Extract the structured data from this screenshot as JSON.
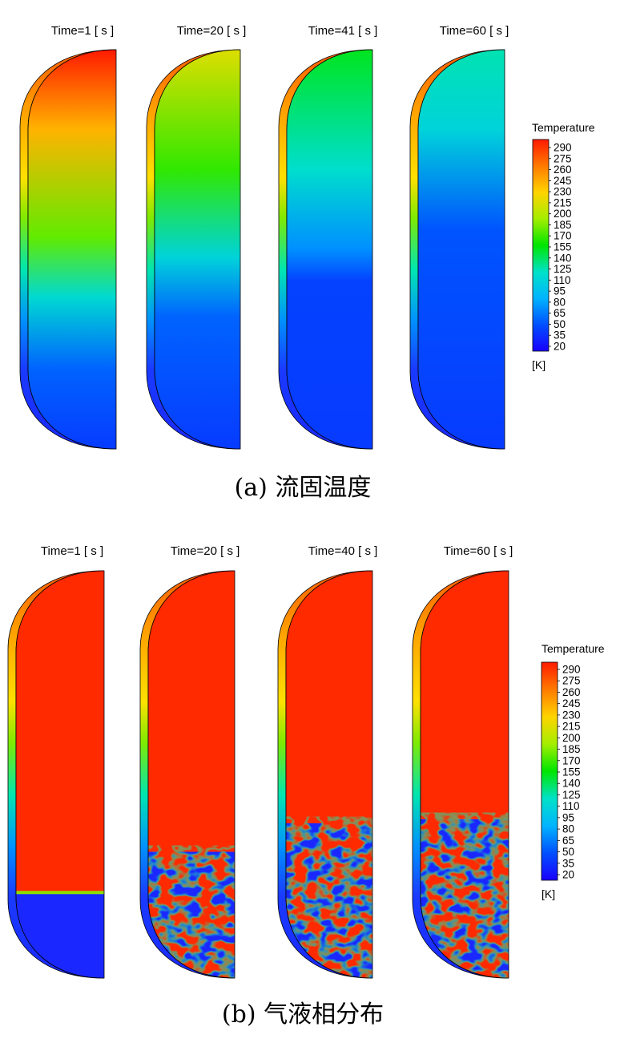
{
  "panel_a": {
    "caption": "(a) 流固温度",
    "times": [
      "Time=1 [ s ]",
      "Time=20 [ s ]",
      "Time=41 [ s ]",
      "Time=60 [ s ]"
    ],
    "legend": {
      "title": "Temperature",
      "unit": "[K]",
      "ticks": [
        "290",
        "275",
        "260",
        "245",
        "230",
        "215",
        "200",
        "185",
        "170",
        "155",
        "140",
        "125",
        "110",
        "95",
        "80",
        "65",
        "50",
        "35",
        "20"
      ]
    },
    "fields": [
      {
        "stops": [
          [
            0.0,
            290
          ],
          [
            0.2,
            235
          ],
          [
            0.47,
            175
          ],
          [
            0.62,
            115
          ],
          [
            0.8,
            60
          ],
          [
            1.0,
            45
          ]
        ]
      },
      {
        "stops": [
          [
            0.0,
            210
          ],
          [
            0.3,
            165
          ],
          [
            0.52,
            110
          ],
          [
            0.67,
            60
          ],
          [
            1.0,
            45
          ]
        ]
      },
      {
        "stops": [
          [
            0.0,
            150
          ],
          [
            0.3,
            118
          ],
          [
            0.5,
            75
          ],
          [
            0.58,
            48
          ],
          [
            1.0,
            45
          ]
        ]
      },
      {
        "stops": [
          [
            0.0,
            125
          ],
          [
            0.2,
            110
          ],
          [
            0.45,
            55
          ],
          [
            1.0,
            45
          ]
        ]
      }
    ]
  },
  "panel_b": {
    "caption": "(b) 气液相分布",
    "times": [
      "Time=1 [ s ]",
      "Time=20 [ s ]",
      "Time=40 [ s ]",
      "Time=60 [ s ]"
    ],
    "legend": {
      "title": "Temperature",
      "unit": "[K]",
      "ticks": [
        "290",
        "275",
        "260",
        "245",
        "230",
        "215",
        "200",
        "185",
        "170",
        "155",
        "140",
        "125",
        "110",
        "95",
        "80",
        "65",
        "50",
        "35",
        "20"
      ]
    },
    "interface_fraction": [
      0.79,
      0.69,
      0.62,
      0.61
    ]
  },
  "colors": {
    "gas": "#ff2a00",
    "liquid": "#1a28ff",
    "outline": "#000000"
  }
}
